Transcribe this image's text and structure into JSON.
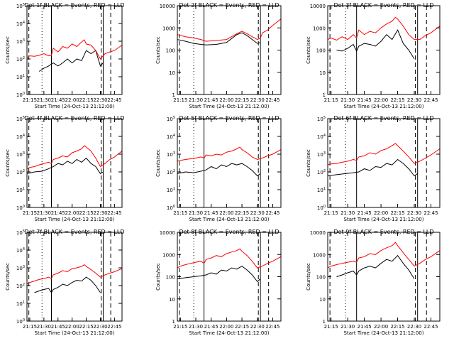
{
  "colors": {
    "events": "#000000",
    "lld": "#ff0000",
    "axes": "#000000"
  },
  "shared": {
    "xlabel": "Start Time (24-Oct-13 21:12:00)",
    "ylabel": "Counts/sec",
    "x_ticks": [
      "21:15",
      "21:30",
      "21:45",
      "22:00",
      "22:15",
      "22:30",
      "22:45"
    ],
    "x_tick_minutes": [
      15,
      30,
      45,
      60,
      75,
      90,
      105
    ],
    "x_range_minutes": [
      12,
      113
    ],
    "marker_lines": [
      {
        "style": "dashed",
        "minute": 14
      },
      {
        "style": "dotted",
        "minute": 28
      },
      {
        "style": "solid",
        "minute": 38
      },
      {
        "style": "dashed",
        "minute": 91
      },
      {
        "style": "solid",
        "minute": 93
      },
      {
        "style": "dashed",
        "minute": 101
      }
    ]
  },
  "chart_data": [
    {
      "title": "Det 1f BLACK = Events, RED = LLD",
      "type": "line",
      "ylim": [
        1,
        100000
      ],
      "log_y": true,
      "y_ticks": [
        "10^0",
        "10^1",
        "10^2",
        "10^3",
        "10^4",
        "10^5"
      ],
      "y_tick_values": [
        1,
        10,
        100,
        1000,
        10000,
        100000
      ],
      "series": [
        {
          "name": "Events",
          "color": "#000000",
          "x": [
            25,
            30,
            35,
            40,
            45,
            50,
            55,
            60,
            65,
            70,
            75,
            80,
            85,
            90,
            93
          ],
          "y": [
            20,
            30,
            40,
            60,
            40,
            60,
            100,
            60,
            100,
            80,
            300,
            200,
            300,
            40,
            60
          ]
        },
        {
          "name": "LLD",
          "color": "#ff0000",
          "x": [
            12,
            15,
            20,
            25,
            30,
            35,
            38,
            40,
            45,
            50,
            55,
            60,
            65,
            70,
            73,
            75,
            80,
            85,
            90,
            95,
            100,
            105,
            113
          ],
          "y": [
            120,
            150,
            140,
            160,
            200,
            150,
            160,
            400,
            250,
            500,
            400,
            700,
            500,
            900,
            1200,
            700,
            600,
            300,
            100,
            200,
            250,
            300,
            600
          ]
        }
      ]
    },
    {
      "title": "Det 2f BLACK = Events, RED = LLD",
      "type": "line",
      "ylim": [
        1,
        10000
      ],
      "log_y": true,
      "y_ticks": [
        "1",
        "10",
        "100",
        "1000",
        "10000"
      ],
      "y_tick_values": [
        1,
        10,
        100,
        1000,
        10000
      ],
      "series": [
        {
          "name": "Events",
          "color": "#000000",
          "x": [
            12,
            20,
            28,
            35,
            40,
            50,
            60,
            70,
            75,
            80,
            85,
            90,
            93
          ],
          "y": [
            300,
            250,
            200,
            180,
            170,
            180,
            220,
            500,
            600,
            450,
            300,
            200,
            220
          ]
        },
        {
          "name": "LLD",
          "color": "#ff0000",
          "x": [
            12,
            20,
            28,
            35,
            40,
            50,
            60,
            70,
            75,
            80,
            85,
            90,
            93,
            95,
            100,
            105,
            113
          ],
          "y": [
            500,
            400,
            350,
            300,
            250,
            270,
            300,
            550,
            700,
            550,
            400,
            300,
            350,
            600,
            800,
            1300,
            2500
          ]
        }
      ]
    },
    {
      "title": "Det 3f BLACK = Events, RED = LLD",
      "type": "line",
      "ylim": [
        1,
        10000
      ],
      "log_y": true,
      "y_ticks": [
        "1",
        "10",
        "100",
        "1000",
        "10000"
      ],
      "y_tick_values": [
        1,
        10,
        100,
        1000,
        10000
      ],
      "series": [
        {
          "name": "Events",
          "color": "#000000",
          "x": [
            20,
            25,
            30,
            35,
            38,
            40,
            45,
            50,
            55,
            60,
            65,
            70,
            75,
            80,
            85,
            90
          ],
          "y": [
            100,
            90,
            120,
            180,
            90,
            150,
            200,
            180,
            150,
            250,
            500,
            300,
            800,
            200,
            100,
            40
          ]
        },
        {
          "name": "LLD",
          "color": "#ff0000",
          "x": [
            12,
            15,
            20,
            25,
            30,
            35,
            38,
            40,
            45,
            50,
            55,
            60,
            65,
            70,
            73,
            75,
            80,
            85,
            90,
            95,
            100,
            105,
            113
          ],
          "y": [
            300,
            350,
            280,
            400,
            300,
            500,
            350,
            800,
            500,
            700,
            600,
            1000,
            1500,
            2000,
            3000,
            2500,
            1200,
            500,
            300,
            300,
            450,
            600,
            1200
          ]
        }
      ]
    },
    {
      "title": "Det 4f BLACK = Events, RED = LLD",
      "type": "line",
      "ylim": [
        1,
        100000
      ],
      "log_y": true,
      "y_ticks": [
        "10^0",
        "10^1",
        "10^2",
        "10^3",
        "10^4",
        "10^5"
      ],
      "y_tick_values": [
        1,
        10,
        100,
        1000,
        10000,
        100000
      ],
      "series": [
        {
          "name": "Events",
          "color": "#000000",
          "x": [
            12,
            20,
            28,
            35,
            40,
            45,
            50,
            55,
            60,
            65,
            70,
            75,
            80,
            85,
            90,
            93
          ],
          "y": [
            80,
            100,
            110,
            150,
            200,
            300,
            250,
            400,
            300,
            500,
            350,
            600,
            300,
            200,
            80,
            100
          ]
        },
        {
          "name": "LLD",
          "color": "#ff0000",
          "x": [
            12,
            15,
            20,
            25,
            30,
            35,
            38,
            40,
            45,
            50,
            55,
            60,
            65,
            70,
            73,
            75,
            80,
            85,
            90,
            95,
            100,
            105,
            113
          ],
          "y": [
            150,
            180,
            200,
            250,
            300,
            350,
            300,
            500,
            600,
            800,
            700,
            1200,
            1500,
            2000,
            3000,
            2500,
            1500,
            600,
            200,
            300,
            500,
            700,
            1500
          ]
        }
      ]
    },
    {
      "title": "Det 5f BLACK = Events, RED = LLD",
      "type": "line",
      "ylim": [
        1,
        100000
      ],
      "log_y": true,
      "y_ticks": [
        "10^0",
        "10^1",
        "10^2",
        "10^3",
        "10^4",
        "10^5"
      ],
      "y_tick_values": [
        1,
        10,
        100,
        1000,
        10000,
        100000
      ],
      "series": [
        {
          "name": "Events",
          "color": "#000000",
          "x": [
            12,
            20,
            28,
            35,
            40,
            45,
            50,
            55,
            60,
            65,
            70,
            75,
            80,
            85,
            90,
            93
          ],
          "y": [
            80,
            100,
            90,
            110,
            130,
            200,
            150,
            250,
            200,
            300,
            250,
            300,
            200,
            120,
            60,
            80
          ]
        },
        {
          "name": "LLD",
          "color": "#ff0000",
          "x": [
            12,
            15,
            20,
            25,
            30,
            35,
            38,
            40,
            45,
            50,
            55,
            60,
            65,
            70,
            73,
            75,
            80,
            85,
            90,
            95,
            100,
            105,
            113
          ],
          "y": [
            400,
            450,
            500,
            550,
            600,
            700,
            600,
            900,
            800,
            1000,
            900,
            1300,
            1500,
            2000,
            2500,
            1800,
            1200,
            700,
            500,
            600,
            800,
            1000,
            1800
          ]
        }
      ]
    },
    {
      "title": "Det 6f BLACK = Events, RED = LLD",
      "type": "line",
      "ylim": [
        1,
        100000
      ],
      "log_y": true,
      "y_ticks": [
        "10^0",
        "10^1",
        "10^2",
        "10^3",
        "10^4",
        "10^5"
      ],
      "y_tick_values": [
        1,
        10,
        100,
        1000,
        10000,
        100000
      ],
      "series": [
        {
          "name": "Events",
          "color": "#000000",
          "x": [
            12,
            20,
            28,
            35,
            40,
            45,
            50,
            55,
            60,
            65,
            70,
            75,
            80,
            85,
            90,
            93
          ],
          "y": [
            60,
            70,
            80,
            90,
            100,
            150,
            120,
            200,
            180,
            300,
            250,
            500,
            300,
            150,
            60,
            80
          ]
        },
        {
          "name": "LLD",
          "color": "#ff0000",
          "x": [
            12,
            15,
            20,
            25,
            30,
            35,
            38,
            40,
            45,
            50,
            55,
            60,
            65,
            70,
            73,
            75,
            80,
            85,
            90,
            95,
            100,
            105,
            113
          ],
          "y": [
            250,
            280,
            300,
            350,
            400,
            500,
            450,
            700,
            800,
            1200,
            1000,
            1600,
            2000,
            3000,
            4000,
            3000,
            1500,
            700,
            300,
            400,
            600,
            900,
            2000
          ]
        }
      ]
    },
    {
      "title": "Det 7f BLACK = Events, RED = LLD",
      "type": "line",
      "ylim": [
        1,
        100000
      ],
      "log_y": true,
      "y_ticks": [
        "10^0",
        "10^1",
        "10^2",
        "10^3",
        "10^4",
        "10^5"
      ],
      "y_tick_values": [
        1,
        10,
        100,
        1000,
        10000,
        100000
      ],
      "series": [
        {
          "name": "Events",
          "color": "#000000",
          "x": [
            20,
            25,
            30,
            35,
            38,
            40,
            45,
            50,
            55,
            60,
            65,
            70,
            75,
            80,
            85,
            90
          ],
          "y": [
            40,
            50,
            60,
            70,
            40,
            60,
            80,
            120,
            100,
            150,
            200,
            180,
            300,
            200,
            100,
            40
          ]
        },
        {
          "name": "LLD",
          "color": "#ff0000",
          "x": [
            12,
            15,
            20,
            25,
            30,
            35,
            38,
            40,
            45,
            50,
            55,
            60,
            65,
            70,
            73,
            75,
            80,
            85,
            90,
            95,
            100,
            105,
            113
          ],
          "y": [
            120,
            150,
            180,
            220,
            250,
            300,
            250,
            400,
            500,
            700,
            600,
            900,
            1000,
            1200,
            1500,
            1200,
            800,
            500,
            300,
            400,
            500,
            600,
            900
          ]
        }
      ]
    },
    {
      "title": "Det 8f BLACK = Events, RED = LLD",
      "type": "line",
      "ylim": [
        1,
        10000
      ],
      "log_y": true,
      "y_ticks": [
        "1",
        "10",
        "100",
        "1000",
        "10000"
      ],
      "y_tick_values": [
        1,
        10,
        100,
        1000,
        10000
      ],
      "series": [
        {
          "name": "Events",
          "color": "#000000",
          "x": [
            12,
            20,
            28,
            35,
            40,
            45,
            50,
            55,
            60,
            65,
            70,
            75,
            80,
            85,
            90,
            93
          ],
          "y": [
            80,
            90,
            100,
            110,
            120,
            150,
            130,
            200,
            180,
            250,
            220,
            300,
            200,
            120,
            60,
            80
          ]
        },
        {
          "name": "LLD",
          "color": "#ff0000",
          "x": [
            12,
            15,
            20,
            25,
            30,
            35,
            38,
            40,
            45,
            50,
            55,
            60,
            65,
            70,
            73,
            75,
            80,
            85,
            90,
            95,
            100,
            105,
            113
          ],
          "y": [
            250,
            300,
            350,
            400,
            450,
            500,
            400,
            600,
            700,
            900,
            800,
            1100,
            1300,
            1500,
            1800,
            1400,
            900,
            500,
            250,
            300,
            400,
            500,
            800
          ]
        }
      ]
    },
    {
      "title": "Det 9f BLACK = Events, RED = LLD",
      "type": "line",
      "ylim": [
        1,
        10000
      ],
      "log_y": true,
      "y_ticks": [
        "1",
        "10",
        "100",
        "1000",
        "10000"
      ],
      "y_tick_values": [
        1,
        10,
        100,
        1000,
        10000
      ],
      "series": [
        {
          "name": "Events",
          "color": "#000000",
          "x": [
            20,
            25,
            30,
            35,
            38,
            40,
            45,
            50,
            55,
            60,
            65,
            70,
            75,
            80,
            85,
            90
          ],
          "y": [
            100,
            120,
            150,
            180,
            120,
            180,
            250,
            300,
            250,
            400,
            600,
            500,
            900,
            400,
            200,
            80
          ]
        },
        {
          "name": "LLD",
          "color": "#ff0000",
          "x": [
            12,
            15,
            20,
            25,
            30,
            35,
            38,
            40,
            45,
            50,
            55,
            60,
            65,
            70,
            73,
            75,
            80,
            85,
            90,
            95,
            100,
            105,
            113
          ],
          "y": [
            250,
            300,
            350,
            400,
            450,
            500,
            450,
            700,
            800,
            1100,
            1000,
            1500,
            2000,
            2500,
            3500,
            2500,
            1200,
            600,
            300,
            400,
            600,
            800,
            1500
          ]
        }
      ]
    }
  ]
}
